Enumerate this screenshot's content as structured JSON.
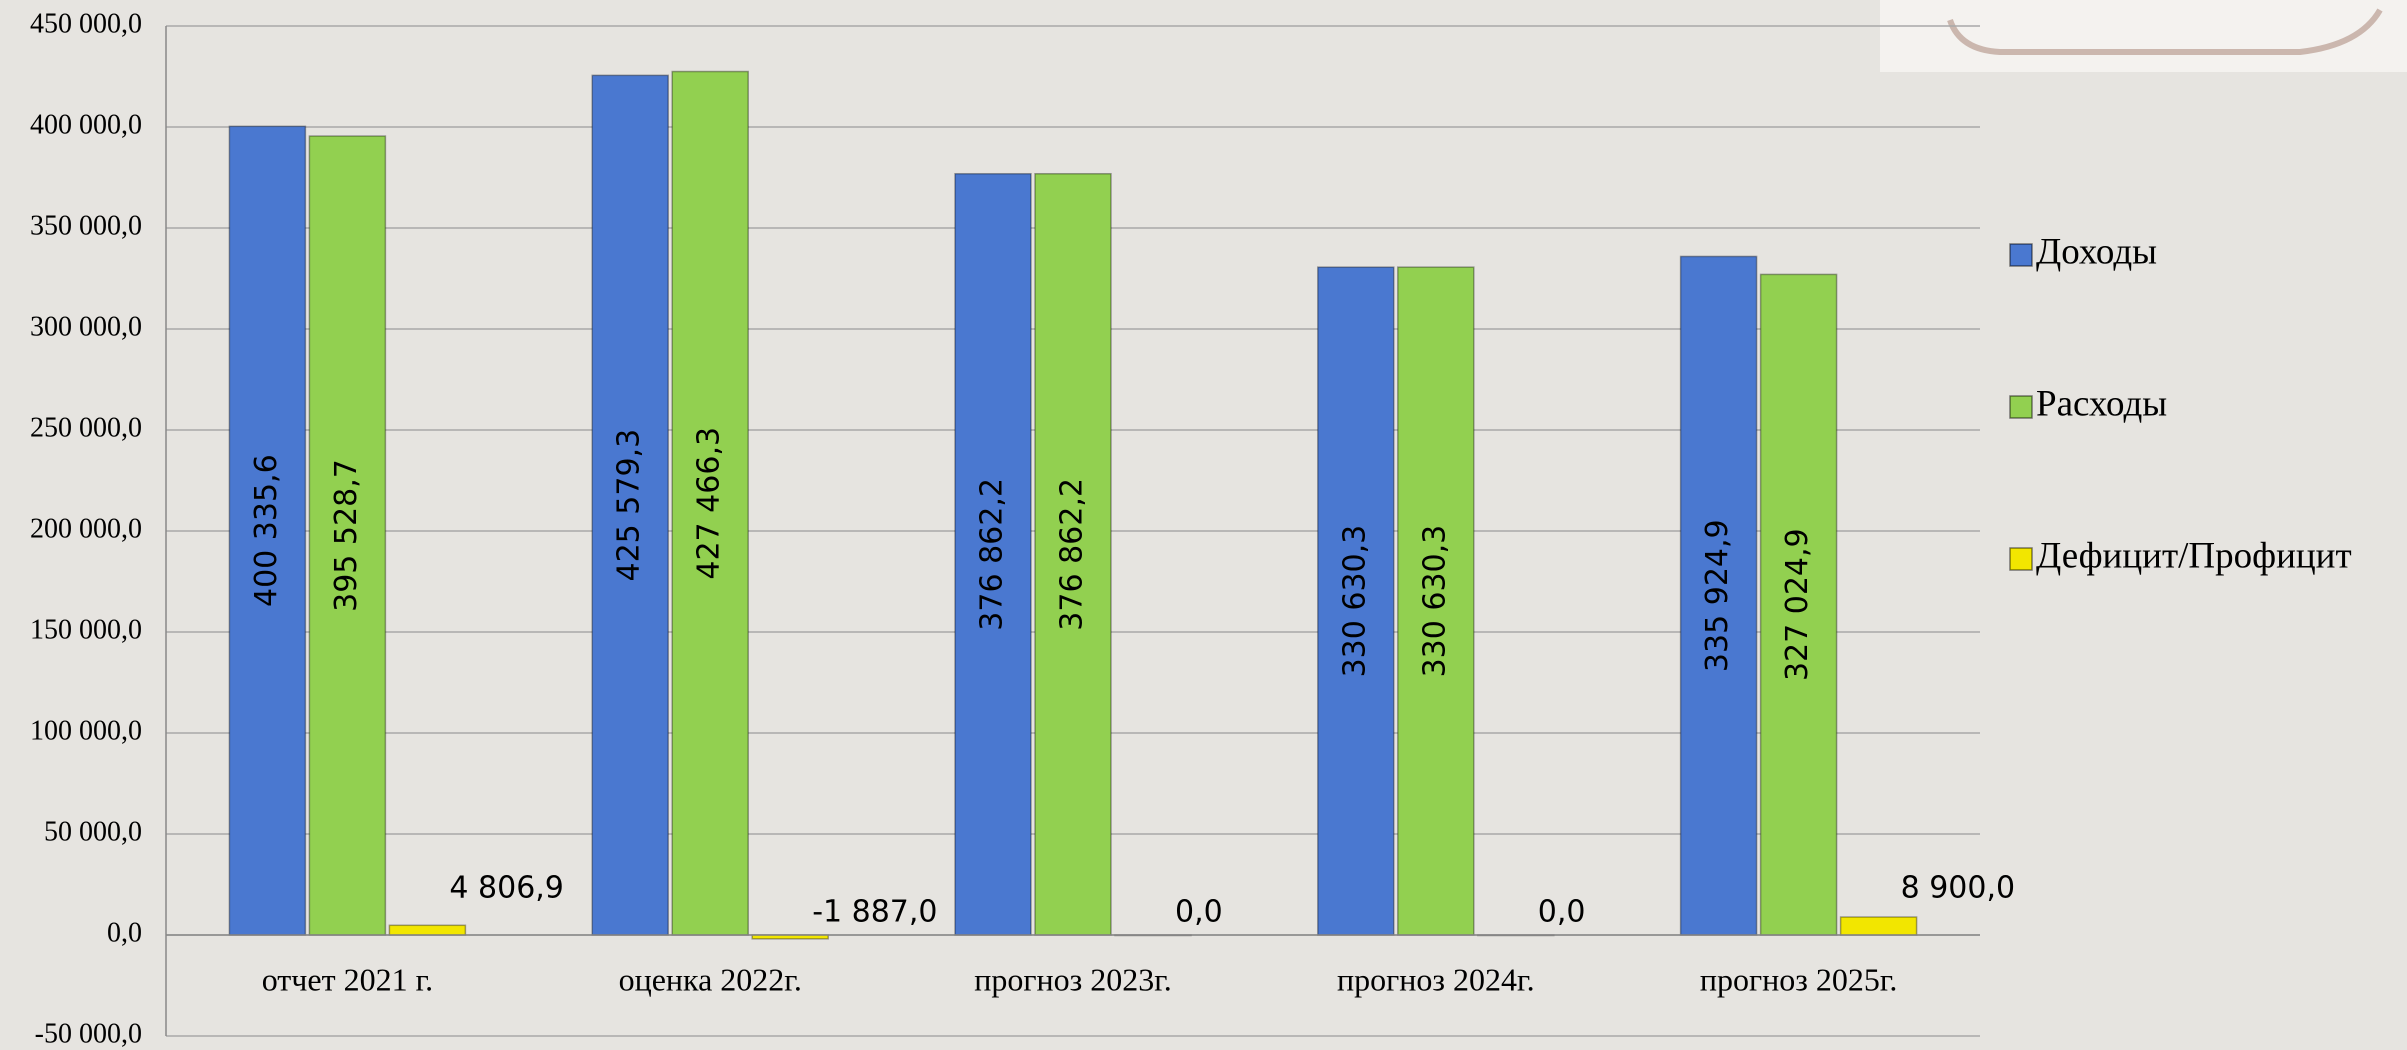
{
  "chart_data": {
    "type": "bar",
    "categories": [
      "отчет 2021 г.",
      "оценка 2022г.",
      "прогноз 2023г.",
      "прогноз 2024г.",
      "прогноз 2025г."
    ],
    "series": [
      {
        "name": "Доходы",
        "color": "#4a78d0",
        "values": [
          400335.6,
          425579.3,
          376862.2,
          330630.3,
          335924.9
        ],
        "value_labels": [
          "400 335,6",
          "425 579,3",
          "376 862,2",
          "330 630,3",
          "335 924,9"
        ]
      },
      {
        "name": "Расходы",
        "color": "#92d050",
        "values": [
          395528.7,
          427466.3,
          376862.2,
          330630.3,
          327024.9
        ],
        "value_labels": [
          "395 528,7",
          "427 466,3",
          "376 862,2",
          "330 630,3",
          "327 024,9"
        ]
      },
      {
        "name": "Дефицит/Профицит",
        "color": "#f2e600",
        "values": [
          4806.9,
          -1887.0,
          0.0,
          0.0,
          8900.0
        ],
        "value_labels": [
          "4 806,9",
          "-1 887,0",
          "0,0",
          "0,0",
          "8 900,0"
        ]
      }
    ],
    "ylim": [
      -50000,
      450000
    ],
    "yticks": [
      {
        "value": -50000,
        "label": "-50 000,0"
      },
      {
        "value": 0,
        "label": "0,0"
      },
      {
        "value": 50000,
        "label": "50 000,0"
      },
      {
        "value": 100000,
        "label": "100 000,0"
      },
      {
        "value": 150000,
        "label": "150 000,0"
      },
      {
        "value": 200000,
        "label": "200 000,0"
      },
      {
        "value": 250000,
        "label": "250 000,0"
      },
      {
        "value": 300000,
        "label": "300 000,0"
      },
      {
        "value": 350000,
        "label": "350 000,0"
      },
      {
        "value": 400000,
        "label": "400 000,0"
      },
      {
        "value": 450000,
        "label": "450 000,0"
      }
    ],
    "grid": true,
    "legend": "right"
  }
}
